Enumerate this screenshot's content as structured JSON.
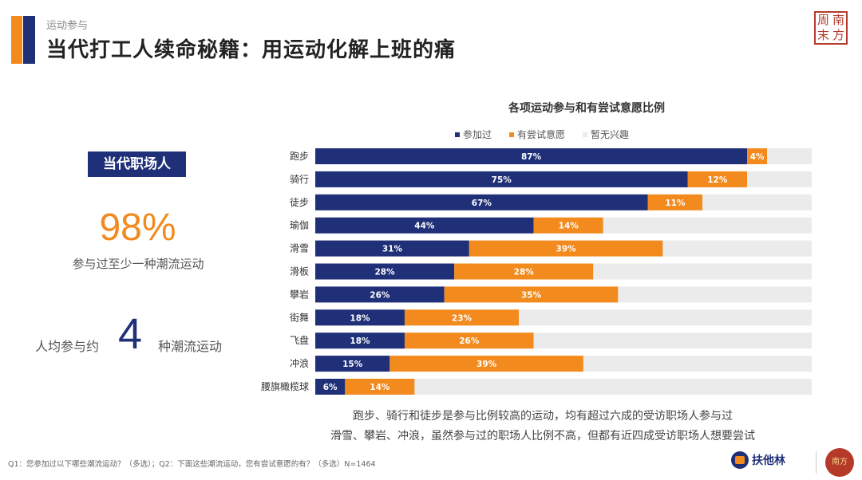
{
  "header": {
    "section": "运动参与",
    "title": "当代打工人续命秘籍：用运动化解上班的痛"
  },
  "logo_seal": [
    "南",
    "周",
    "方",
    "末"
  ],
  "profile": {
    "badge": "当代职场人",
    "participation_percent": "98%",
    "participation_desc": "参与过至少一种潮流运动",
    "avg_prefix": "人均参与约",
    "avg_number": "4",
    "avg_suffix": "种潮流运动"
  },
  "chart_data": {
    "type": "bar",
    "orientation": "horizontal-stacked",
    "title": "各项运动参与和有尝试意愿比例",
    "categories": [
      "跑步",
      "骑行",
      "徒步",
      "瑜伽",
      "滑雪",
      "滑板",
      "攀岩",
      "街舞",
      "飞盘",
      "冲浪",
      "腰旗橄榄球"
    ],
    "series": [
      {
        "name": "参加过",
        "color": "#1f2f78",
        "values": [
          87,
          75,
          67,
          44,
          31,
          28,
          26,
          18,
          18,
          15,
          6
        ]
      },
      {
        "name": "有尝试意愿",
        "color": "#f28a1e",
        "values": [
          4,
          12,
          11,
          14,
          39,
          28,
          35,
          23,
          26,
          39,
          14
        ]
      },
      {
        "name": "暂无兴趣",
        "color": "#ebebeb",
        "values": [
          9,
          13,
          22,
          42,
          30,
          44,
          39,
          59,
          56,
          46,
          80
        ]
      }
    ],
    "unit": "%",
    "xlim": [
      0,
      100
    ],
    "legend_position": "top"
  },
  "notes": [
    "跑步、骑行和徒步是参与比例较高的运动，均有超过六成的受访职场人参与过",
    "滑雪、攀岩、冲浪，虽然参与过的职场人比例不高，但都有近四成受访职场人想要尝试"
  ],
  "footnote": "Q1：您参加过以下哪些潮流运动？（多选）；Q2：下面这些潮流运动，您有尝试意愿的有？（多选）N=1464",
  "brand": {
    "name": "扶他林"
  },
  "emblem": {
    "text": "南方"
  },
  "colors": {
    "navy": "#1f2f78",
    "orange": "#f28a1e",
    "grey": "#ebebeb"
  }
}
